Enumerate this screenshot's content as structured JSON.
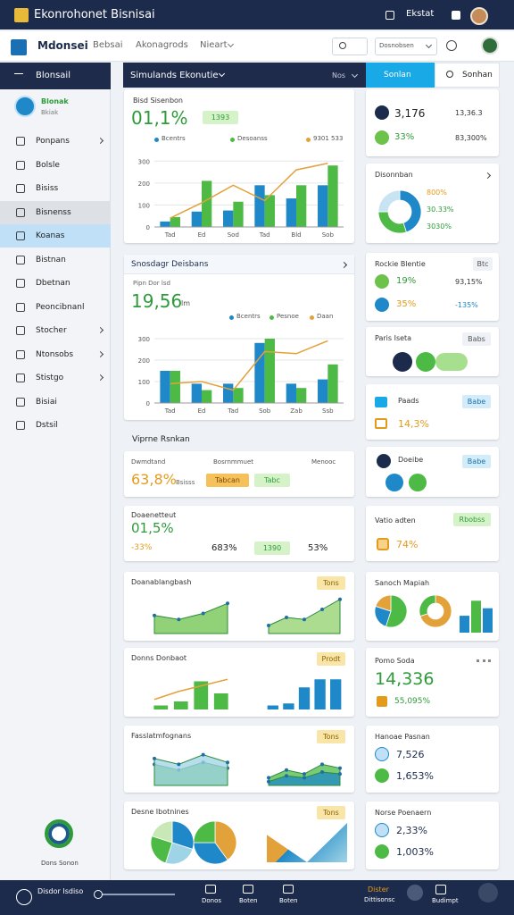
{
  "topbar": {
    "title": "Ekonrohonet Bisnisai",
    "user": "Ekstat"
  },
  "navbar": {
    "brand": "Mdonsei",
    "links": [
      "Bebsai",
      "Akonagrods",
      "Nieart"
    ],
    "select": "Dosnobsen"
  },
  "sidebar": {
    "title": "Blonsail",
    "user_name": "Blonak",
    "user_role": "Bkiak",
    "items": [
      {
        "label": "Ponpans",
        "submenu": true
      },
      {
        "label": "Bolsle"
      },
      {
        "label": "Bisiss"
      },
      {
        "label": "Bisnenss",
        "state": "selected"
      },
      {
        "label": "Koanas",
        "state": "active"
      },
      {
        "label": "Bistnan"
      },
      {
        "label": "Dbetnan"
      },
      {
        "label": "Peoncibnanl"
      },
      {
        "label": "Stocher",
        "submenu": true
      },
      {
        "label": "Ntonsobs",
        "submenu": true
      },
      {
        "label": "Stistgo",
        "submenu": true
      },
      {
        "label": "Bisiai"
      },
      {
        "label": "Dstsil"
      }
    ],
    "footer": "Dons Sonon"
  },
  "header": {
    "title": "Simulands Ekonutie",
    "filter": "Nos",
    "primary": "Sonlan",
    "secondary": "Sonhan"
  },
  "main_cards": [
    {
      "title": "Bisd Sisenbon",
      "value": "01,1%",
      "badge": "1393",
      "chart": {
        "type": "bar",
        "categories": [
          "Tad",
          "Ed",
          "Sod",
          "Tad",
          "Bld",
          "Sob"
        ],
        "ylim": [
          0,
          350
        ],
        "yticks": [
          0,
          100,
          200,
          300
        ],
        "series": [
          {
            "name": "Bcentrs",
            "type": "bar",
            "color": "#1e88c8",
            "values": [
              25,
              70,
              75,
              190,
              130,
              190
            ]
          },
          {
            "name": "Desoanss",
            "type": "bar",
            "color": "#4cba45",
            "values": [
              45,
              210,
              115,
              145,
              190,
              280
            ]
          },
          {
            "name": "9301 533",
            "type": "line",
            "color": "#e3a13a",
            "values": [
              40,
              110,
              190,
              120,
              260,
              290
            ]
          }
        ]
      }
    },
    {
      "title": "Snosdagr Deisbans",
      "subtitle": "Pipn Dor lsd",
      "value": "19,56",
      "unit": "lm",
      "chart": {
        "type": "bar",
        "categories": [
          "Tad",
          "Ed",
          "Tad",
          "Sob",
          "Zab",
          "Ssb"
        ],
        "ylim": [
          0,
          350
        ],
        "yticks": [
          0,
          100,
          200,
          300
        ],
        "series": [
          {
            "name": "Bcentrs",
            "type": "bar",
            "color": "#1e88c8",
            "values": [
              150,
              90,
              90,
              280,
              90,
              110
            ]
          },
          {
            "name": "Pesnoe",
            "type": "bar",
            "color": "#4cba45",
            "values": [
              150,
              60,
              70,
              300,
              70,
              180
            ]
          },
          {
            "name": "Daan",
            "type": "line",
            "color": "#e3a13a",
            "values": [
              90,
              100,
              60,
              240,
              230,
              290
            ]
          }
        ]
      },
      "section_title": "Viprne Rsnkan",
      "row_labels": [
        "Dwmdtand",
        "Bosrnmmuet",
        "Menooc"
      ],
      "stat": "63,8%",
      "stat_label": "Bsisss",
      "badges": [
        "Tabcan",
        "Tabc"
      ]
    },
    {
      "title": "Doaenetteut",
      "value": "01,5%",
      "change": "-33%",
      "stat1": "683%",
      "badge": "1390",
      "stat2": "53%"
    },
    {
      "title": "Doanablangbash",
      "badge": "Tons",
      "charts": [
        {
          "type": "area",
          "ylim": [
            0,
            100
          ],
          "series": [
            {
              "color": "#6cc24a",
              "values": [
                45,
                35,
                50,
                75
              ]
            }
          ]
        },
        {
          "type": "area",
          "ylim": [
            0,
            100
          ],
          "series": [
            {
              "color": "#8fd06a",
              "values": [
                20,
                40,
                35,
                60,
                85
              ]
            }
          ]
        }
      ]
    },
    {
      "title": "Donns Donbaot",
      "badge": "Prodt",
      "charts": [
        {
          "type": "mixed",
          "ylim": [
            0,
            100
          ],
          "series": [
            {
              "type": "bar",
              "color": "#4cba45",
              "values": [
                10,
                20,
                70,
                40
              ]
            },
            {
              "type": "line",
              "color": "#e3a13a",
              "values": [
                25,
                45,
                60,
                75
              ]
            }
          ]
        },
        {
          "type": "mixed",
          "ylim": [
            0,
            100
          ],
          "series": [
            {
              "type": "bar",
              "color": "#1e88c8",
              "values": [
                10,
                15,
                55,
                75,
                75
              ]
            }
          ]
        }
      ]
    },
    {
      "title": "Fasslatmfognans",
      "badge": "Tons",
      "charts": [
        {
          "type": "area",
          "ylim": [
            0,
            100
          ],
          "series": [
            {
              "color": "#4cba45",
              "values": [
                55,
                40,
                60,
                45
              ]
            },
            {
              "color": "#9fd3e6",
              "values": [
                70,
                55,
                80,
                60
              ]
            }
          ]
        },
        {
          "type": "area",
          "ylim": [
            0,
            100
          ],
          "series": [
            {
              "color": "#4cba45",
              "values": [
                20,
                40,
                30,
                55,
                45
              ]
            },
            {
              "color": "#1e88c8",
              "values": [
                10,
                25,
                20,
                35,
                30
              ]
            }
          ]
        }
      ]
    },
    {
      "title": "Desne Ibotnines",
      "badge": "Tons",
      "pies": [
        {
          "colors": [
            "#1e88c8",
            "#9fd3e6",
            "#4cba45",
            "#c9e8b8"
          ],
          "values": [
            30,
            25,
            25,
            20
          ]
        },
        {
          "colors": [
            "#e3a13a",
            "#1e88c8",
            "#4cba45"
          ],
          "values": [
            40,
            35,
            25
          ]
        }
      ]
    }
  ],
  "side_cards": [
    {
      "value1": "3,176",
      "extra1": "13,36.3",
      "value2": "33%",
      "extra2": "83,300%"
    },
    {
      "title": "Disonnban",
      "donut": {
        "colors": [
          "#1e88c8",
          "#4cba45",
          "#c8e4f2"
        ],
        "values": [
          45,
          30,
          25
        ]
      },
      "labels": [
        "800%",
        "30.33%",
        "3030%"
      ]
    },
    {
      "title": "Rockie Blentie",
      "badge": "Btc",
      "value1": "19%",
      "extra1": "93,15%",
      "value2": "35%",
      "extra2": "-135%"
    },
    {
      "title": "Paris Iseta",
      "badge": "Babs"
    },
    {
      "title": "Paads",
      "badge": "Babe",
      "value": "14,3%"
    },
    {
      "title": "Doeibe",
      "badge": "Babe"
    },
    {
      "title": "Vatio adten",
      "badge": "Rbobss",
      "value": "74%"
    },
    {
      "title": "Sanoch Mapiah",
      "pies": [
        {
          "colors": [
            "#4cba45",
            "#1e88c8",
            "#e3a13a"
          ],
          "values": [
            55,
            25,
            20
          ]
        },
        {
          "colors": [
            "#e3a13a",
            "#4cba45"
          ],
          "values": [
            70,
            30
          ]
        }
      ],
      "bars": {
        "ylim": [
          0,
          100
        ],
        "colors": [
          "#1e88c8",
          "#4cba45",
          "#1e88c8"
        ],
        "values": [
          45,
          85,
          65
        ]
      }
    },
    {
      "title": "Pomo Soda",
      "value": "14,336",
      "change": "55,095%"
    },
    {
      "title": "Hanoae Pasnan",
      "value1": "7,526",
      "value2": "1,653%"
    },
    {
      "title": "Norse Poenaern",
      "value1": "2,33%",
      "value2": "1,003%"
    }
  ],
  "bottombar": {
    "label": "Disdor Isdiso",
    "items": [
      "Donos",
      "Boten",
      "Boten"
    ],
    "status": "Dister",
    "status_sub": "Dittisonsc",
    "action": "Budimpt"
  }
}
